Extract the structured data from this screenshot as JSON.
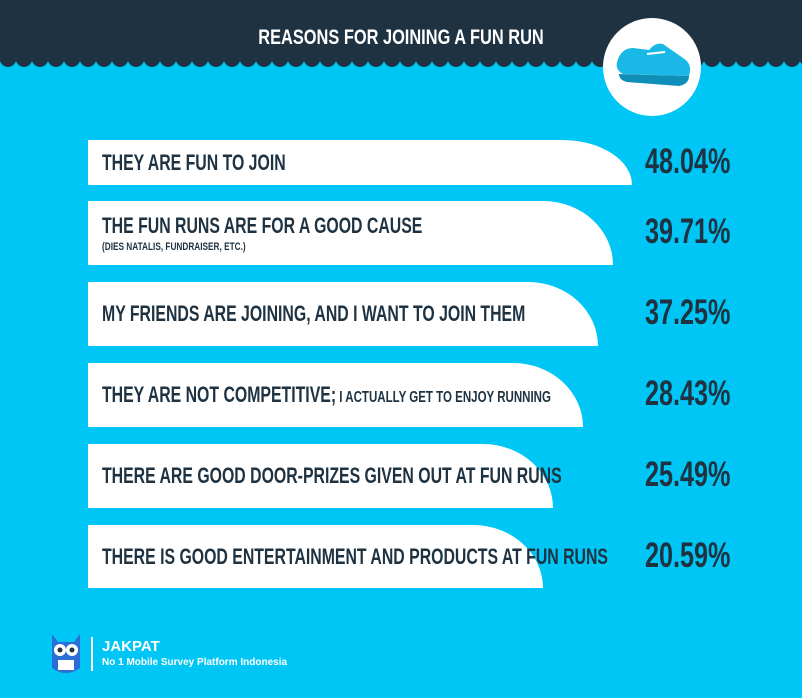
{
  "header": {
    "title": "REASONS FOR JOINING A FUN RUN"
  },
  "items": [
    {
      "label": "THEY ARE FUN TO JOIN",
      "value": "48.04%"
    },
    {
      "label": "THE FUN RUNS ARE FOR A GOOD CAUSE",
      "note": "(DIES NATALIS, FUNDRAISER, ETC.)",
      "value": "39.71%"
    },
    {
      "label": "MY FRIENDS ARE JOINING, AND I WANT TO JOIN THEM",
      "value": "37.25%"
    },
    {
      "label": "THEY ARE NOT COMPETITIVE;",
      "label_small": "I ACTUALLY GET TO ENJOY RUNNING",
      "value": "28.43%"
    },
    {
      "label": "THERE ARE GOOD DOOR-PRIZES GIVEN OUT AT FUN RUNS",
      "value": "25.49%"
    },
    {
      "label": "THERE IS GOOD ENTERTAINMENT AND PRODUCTS AT FUN RUNS",
      "value": "20.59%"
    }
  ],
  "footer": {
    "brand": "JAKPAT",
    "tagline": "No 1 Mobile Survey Platform Indonesia"
  }
}
